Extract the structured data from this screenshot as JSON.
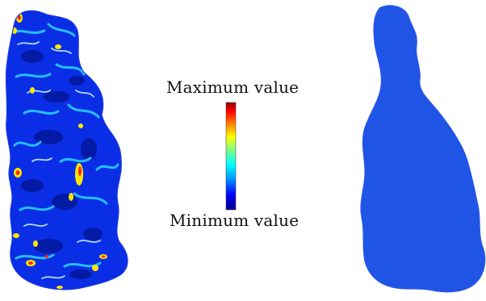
{
  "colorbar": {
    "max_label": "Maximum value",
    "min_label": "Minimum value",
    "colormap": "jet",
    "stops": [
      "#00008f",
      "#0000ff",
      "#00a0ff",
      "#00ffff",
      "#80ff80",
      "#ffff00",
      "#ff8000",
      "#ff0000",
      "#8f0000"
    ]
  },
  "panels": [
    {
      "position": "left",
      "appearance": "jet-mapped error field with many yellow and red hotspots",
      "base_color": "#0a2ee6"
    },
    {
      "position": "right",
      "appearance": "near-uniform low-value noise field",
      "base_color": "#1f4cf0"
    }
  ]
}
